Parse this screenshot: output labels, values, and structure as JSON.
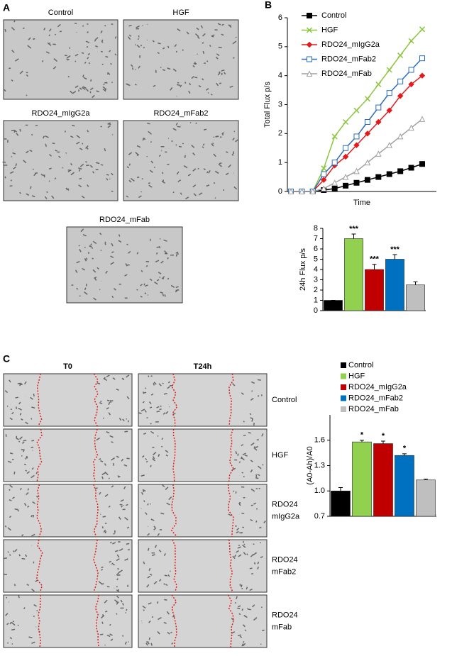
{
  "figure": {
    "panels": [
      "A",
      "B",
      "C"
    ],
    "a_captions": [
      "Control",
      "HGF",
      "RDO24_mIgG2a",
      "RDO24_mFab2",
      "RDO24_mFab"
    ],
    "c_columns": [
      "T0",
      "T24h"
    ],
    "c_rows": [
      [
        "Control"
      ],
      [
        "HGF"
      ],
      [
        "RDO24",
        "mIgG2a"
      ],
      [
        "RDO24",
        "mFab2"
      ],
      [
        "RDO24",
        "mFab"
      ]
    ]
  },
  "chart_data": [
    {
      "type": "line",
      "ylabel": "Total Flux p/s",
      "xlabel": "Time",
      "categories": [
        null,
        null,
        null,
        null,
        null,
        null,
        null,
        null,
        null,
        null,
        null,
        null,
        null
      ],
      "ylim": [
        0,
        6
      ],
      "yticks": [
        0,
        1,
        2,
        3,
        4,
        5,
        6
      ],
      "legend": "top-left",
      "series": [
        {
          "name": "Control",
          "color": "#000000",
          "marker": "square",
          "values": [
            0,
            0,
            0,
            0.05,
            0.1,
            0.2,
            0.3,
            0.4,
            0.5,
            0.6,
            0.7,
            0.82,
            0.95
          ]
        },
        {
          "name": "HGF",
          "color": "#8cc63f",
          "marker": "x",
          "values": [
            0,
            0,
            0,
            0.8,
            1.9,
            2.4,
            2.8,
            3.2,
            3.7,
            4.2,
            4.7,
            5.2,
            5.6
          ]
        },
        {
          "name": "RDO24_mIgG2a",
          "color": "#e41a1c",
          "marker": "diamond",
          "values": [
            0,
            0,
            0,
            0.4,
            0.9,
            1.2,
            1.6,
            2.0,
            2.4,
            2.8,
            3.3,
            3.7,
            4.0
          ]
        },
        {
          "name": "RDO24_mFab2",
          "color": "#2a6ebb",
          "marker": "square-open",
          "values": [
            0,
            0,
            0,
            0.6,
            1.0,
            1.5,
            1.9,
            2.4,
            2.9,
            3.4,
            3.8,
            4.2,
            4.6
          ]
        },
        {
          "name": "RDO24_mFab",
          "color": "#a0a0a0",
          "marker": "triangle-open",
          "values": [
            0,
            0,
            0,
            0.1,
            0.3,
            0.5,
            0.7,
            1.0,
            1.3,
            1.6,
            1.9,
            2.2,
            2.5
          ]
        }
      ]
    },
    {
      "type": "bar",
      "ylabel": "24h Flux p/s",
      "ylim": [
        0,
        8
      ],
      "yticks": [
        0,
        1,
        2,
        3,
        4,
        5,
        6,
        7,
        8
      ],
      "values": [
        1,
        7,
        4,
        5,
        2.5
      ],
      "errors": [
        0,
        0.45,
        0.5,
        0.45,
        0.3
      ],
      "colors": [
        "#000000",
        "#92d050",
        "#c00000",
        "#0070c0",
        "#bfbfbf"
      ],
      "annotations": [
        null,
        "***",
        "***",
        "***",
        null
      ]
    },
    {
      "type": "bar",
      "ylabel": "(A0-Ah)/A0",
      "ylim": [
        0.7,
        1.9
      ],
      "yticks": [
        0.7,
        {
          "value": 1.0,
          "label": "1.0"
        },
        1.3,
        1.6
      ],
      "categories": [
        "Control",
        "HGF",
        "RDO24_mIgG2a",
        "RDO24_mFab2",
        "RDO24_mFab"
      ],
      "values": [
        1.0,
        1.58,
        1.56,
        1.42,
        1.13
      ],
      "errors": [
        0.04,
        0.02,
        0.03,
        0.02,
        0.01
      ],
      "colors": [
        "#000000",
        "#92d050",
        "#c00000",
        "#0070c0",
        "#bfbfbf"
      ],
      "annotations": [
        null,
        "*",
        "*",
        "*",
        null
      ],
      "legend": "top"
    }
  ]
}
